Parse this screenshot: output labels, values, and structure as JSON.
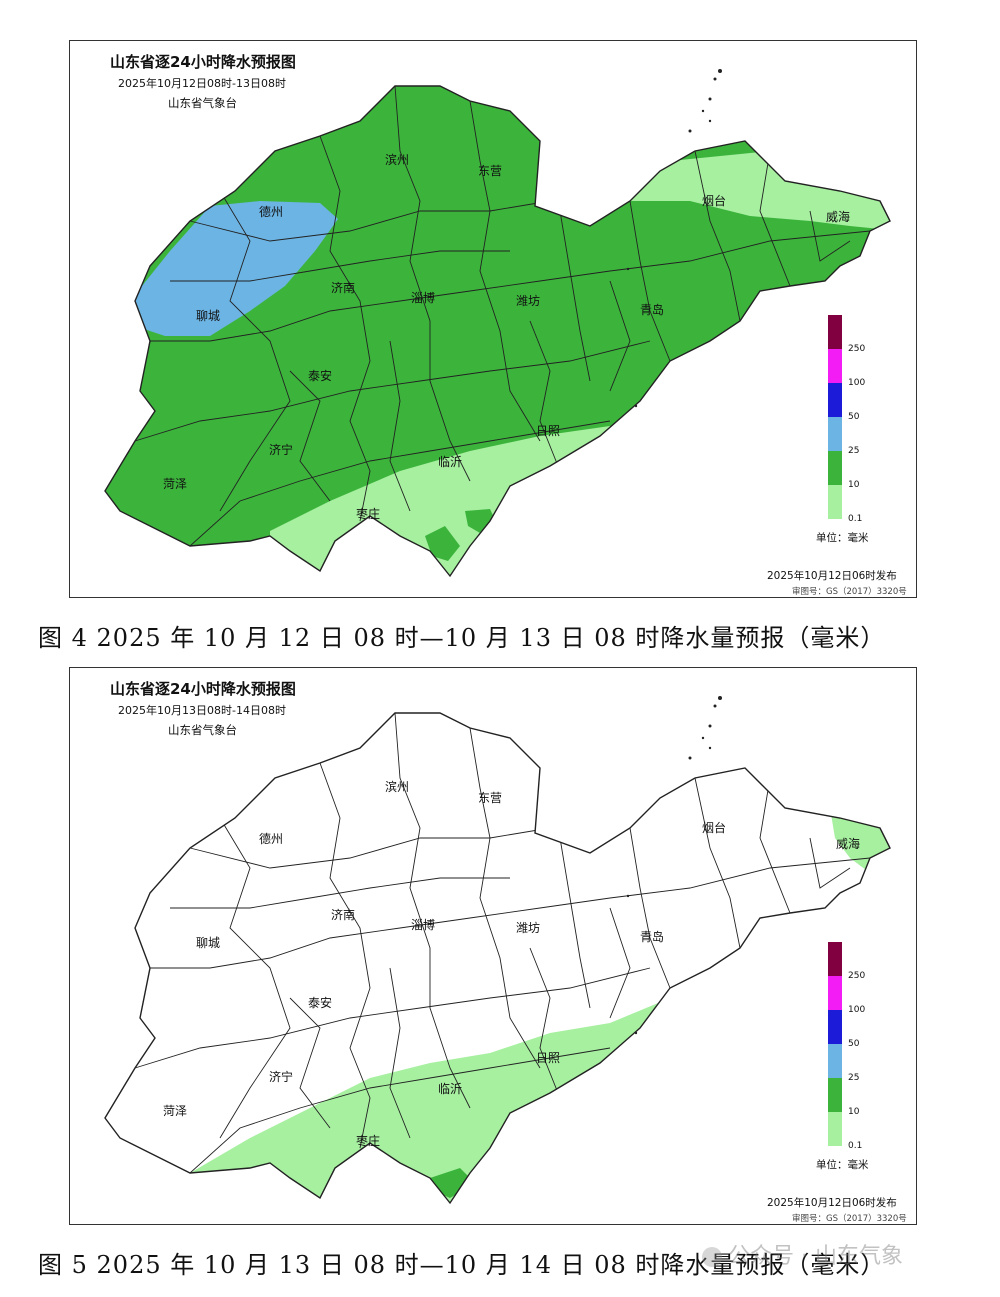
{
  "colors": {
    "light_green": "#a6f0a0",
    "green": "#3cb43c",
    "light_blue": "#6cb4e4",
    "blue": "#1c1cd8",
    "magenta": "#f41cf4",
    "maroon": "#800040",
    "border": "#222222"
  },
  "maps": [
    {
      "title": "山东省逐24小时降水预报图",
      "subtitle": "2025年10月12日08时-13日08时",
      "agency": "山东省气象台",
      "issued": "2025年10月12日06时发布",
      "review_no": "审图号：GS（2017）3320号",
      "unit": "单位：毫米",
      "legend": {
        "labels": [
          "250",
          "100",
          "50",
          "25",
          "10",
          "0.1"
        ],
        "colors": [
          "#800040",
          "#f41cf4",
          "#1c1cd8",
          "#6cb4e4",
          "#3cb43c",
          "#a6f0a0"
        ]
      },
      "cities": [
        "滨州",
        "东营",
        "烟台",
        "威海",
        "德州",
        "济南",
        "淄博",
        "潍坊",
        "青岛",
        "聊城",
        "泰安",
        "日照",
        "济宁",
        "临沂",
        "菏泽",
        "枣庄"
      ],
      "regions": {
        "base": "10-25 mm",
        "northwest": "25-50 mm",
        "peninsula_and_south": "0.1-10 mm"
      }
    },
    {
      "title": "山东省逐24小时降水预报图",
      "subtitle": "2025年10月13日08时-14日08时",
      "agency": "山东省气象台",
      "issued": "2025年10月12日06时发布",
      "review_no": "审图号：GS（2017）3320号",
      "unit": "单位：毫米",
      "legend": {
        "labels": [
          "250",
          "100",
          "50",
          "25",
          "10",
          "0.1"
        ],
        "colors": [
          "#800040",
          "#f41cf4",
          "#1c1cd8",
          "#6cb4e4",
          "#3cb43c",
          "#a6f0a0"
        ]
      },
      "cities": [
        "滨州",
        "东营",
        "烟台",
        "威海",
        "德州",
        "济南",
        "淄博",
        "潍坊",
        "青岛",
        "聊城",
        "泰安",
        "日照",
        "济宁",
        "临沂",
        "菏泽",
        "枣庄"
      ],
      "regions": {
        "base": "no rain",
        "south_and_weihai": "0.1-10 mm"
      }
    }
  ],
  "captions": [
    "图 4 2025 年 10 月 12 日 08 时—10 月 13 日 08 时降水量预报（毫米）",
    "图 5 2025 年 10 月 13 日 08 时—10 月 14 日 08 时降水量预报（毫米）"
  ],
  "watermark": "公众号 · 山东气象"
}
